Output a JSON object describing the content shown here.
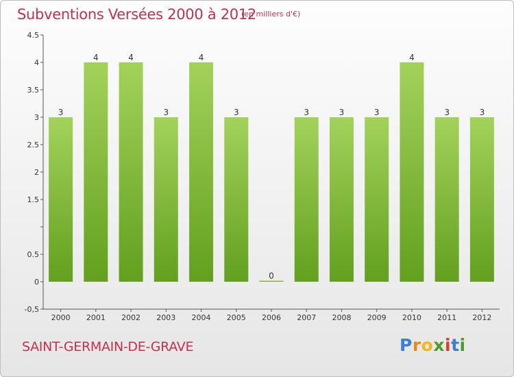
{
  "title": "Subventions Versées 2000 à 2012",
  "subtitle": "(en milliers d'€)",
  "commune": "SAINT-GERMAIN-DE-GRAVE",
  "logo": "Proxiti",
  "colors": {
    "title": "#c0324e",
    "bar_light": "#a3d25b",
    "bar_dark": "#62a01e",
    "axis": "#555555"
  },
  "chart_data": {
    "type": "bar",
    "categories": [
      "2000",
      "2001",
      "2002",
      "2003",
      "2004",
      "2005",
      "2006",
      "2007",
      "2008",
      "2009",
      "2010",
      "2011",
      "2012"
    ],
    "values": [
      3,
      4,
      4,
      3,
      4,
      3,
      0,
      3,
      3,
      3,
      4,
      3,
      3
    ],
    "data_labels": [
      "3",
      "4",
      "4",
      "3",
      "4",
      "3",
      "0",
      "3",
      "3",
      "3",
      "4",
      "3",
      "3"
    ],
    "title": "Subventions Versées 2000 à 2012",
    "ylim": [
      -0.5,
      4.5
    ],
    "y_ticks": [
      -0.5,
      0,
      0.5,
      1,
      1.5,
      2,
      2.5,
      3,
      3.5,
      4,
      4.5
    ],
    "y_tick_labels": [
      "-0,5",
      "0",
      "0.5",
      "",
      "1.5",
      "2",
      "2.5",
      "3",
      "3.5",
      "4",
      "4.5"
    ],
    "grid": false
  }
}
